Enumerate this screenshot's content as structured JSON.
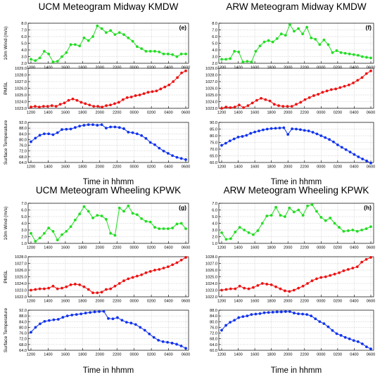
{
  "chart_data": [
    {
      "type": "line",
      "title": "UCM Meteogram Midway KMDW",
      "panel_label": "(e)",
      "xlabel": "Time in hhmm",
      "x_ticks": [
        "1200",
        "1400",
        "1600",
        "1800",
        "2000",
        "2200",
        "0000",
        "0200",
        "0400",
        "0600"
      ],
      "subplots": [
        {
          "ylabel": "10m Wind (m/s)",
          "color": "#22dd22",
          "ylim": [
            2,
            8
          ],
          "yticks": [
            "2.0",
            "3.0",
            "4.0",
            "5.0",
            "6.0",
            "7.0",
            "8.0"
          ],
          "values": [
            2.6,
            2.4,
            2.8,
            3.8,
            3.4,
            2.2,
            2.3,
            3.0,
            3.6,
            4.8,
            4.8,
            4.6,
            5.8,
            5.4,
            6.0,
            7.6,
            7.2,
            6.6,
            6.9,
            6.3,
            6.6,
            6.3,
            5.8,
            5.3,
            4.5,
            4.2,
            3.8,
            3.8,
            3.8,
            3.7,
            3.4,
            3.4,
            3.3,
            3.0,
            3.4,
            3.4
          ]
        },
        {
          "ylabel": "PMSL",
          "color": "#ee1111",
          "ylim": [
            1023,
            1029
          ],
          "yticks": [
            "1023.0",
            "1024.0",
            "1025.0",
            "1026.0",
            "1027.0",
            "1028.0",
            "1029.0"
          ],
          "values": [
            1023.2,
            1023.3,
            1023.2,
            1023.3,
            1023.3,
            1023.4,
            1023.3,
            1023.6,
            1023.8,
            1024.2,
            1024.4,
            1024.2,
            1023.9,
            1023.7,
            1023.5,
            1023.3,
            1023.3,
            1023.2,
            1023.4,
            1023.5,
            1023.7,
            1023.9,
            1024.3,
            1024.6,
            1024.7,
            1024.9,
            1025.0,
            1025.2,
            1025.4,
            1025.5,
            1025.6,
            1025.9,
            1026.2,
            1026.5,
            1027.0,
            1027.6,
            1028.3,
            1028.6
          ]
        },
        {
          "ylabel": "Surface Temperature",
          "color": "#1133ee",
          "ylim": [
            64,
            92
          ],
          "yticks": [
            "64.0",
            "68.0",
            "72.0",
            "76.0",
            "80.0",
            "84.0",
            "88.0",
            "92.0"
          ],
          "values": [
            78.5,
            81.0,
            83.0,
            84.0,
            84.0,
            83.4,
            84.8,
            87.0,
            87.2,
            87.4,
            88.4,
            89.4,
            90.0,
            90.4,
            90.4,
            90.0,
            90.4,
            88.0,
            88.8,
            88.8,
            88.4,
            87.6,
            85.2,
            84.8,
            84.0,
            82.8,
            80.8,
            78.0,
            76.4,
            74.0,
            72.0,
            70.4,
            68.8,
            67.6,
            66.8,
            66.0
          ]
        }
      ]
    },
    {
      "type": "line",
      "title": "ARW Meteogram Midway KMDW",
      "panel_label": "(f)",
      "xlabel": "Time in hhmm",
      "x_ticks": [
        "1200",
        "1400",
        "1600",
        "1800",
        "2000",
        "2200",
        "0000",
        "0200",
        "0400",
        "0600"
      ],
      "subplots": [
        {
          "ylabel": "",
          "color": "#22dd22",
          "ylim": [
            2,
            8
          ],
          "yticks": [
            "2.0",
            "3.0",
            "4.0",
            "5.0",
            "6.0",
            "7.0",
            "8.0"
          ],
          "values": [
            2.6,
            2.6,
            2.7,
            3.8,
            3.7,
            2.2,
            2.3,
            2.2,
            3.8,
            4.6,
            5.2,
            5.4,
            5.2,
            5.7,
            6.4,
            6.2,
            7.8,
            6.8,
            7.2,
            6.4,
            7.4,
            5.8,
            5.6,
            4.8,
            5.5,
            4.8,
            3.6,
            3.9,
            3.6,
            3.5,
            3.4,
            3.3,
            3.2,
            3.0,
            2.9,
            2.8
          ]
        },
        {
          "ylabel": "",
          "color": "#ee1111",
          "ylim": [
            1023,
            1029
          ],
          "yticks": [
            "1023.0",
            "1024.0",
            "1025.0",
            "1026.0",
            "1027.0",
            "1028.0",
            "1029.0"
          ],
          "values": [
            1023.0,
            1023.2,
            1023.1,
            1023.2,
            1023.5,
            1023.1,
            1023.4,
            1023.8,
            1024.2,
            1024.5,
            1024.3,
            1024.1,
            1023.6,
            1023.4,
            1023.3,
            1023.3,
            1023.3,
            1023.6,
            1023.9,
            1024.3,
            1024.6,
            1024.9,
            1025.1,
            1025.4,
            1025.6,
            1025.8,
            1025.9,
            1026.1,
            1026.3,
            1026.5,
            1026.8,
            1027.2,
            1027.6,
            1028.2,
            1028.6
          ]
        },
        {
          "ylabel": "",
          "color": "#1133ee",
          "ylim": [
            60,
            90
          ],
          "yticks": [
            "60.0",
            "65.0",
            "70.0",
            "75.0",
            "80.0",
            "85.0",
            "90.0"
          ],
          "values": [
            72.8,
            74.4,
            76.2,
            77.6,
            79.0,
            79.5,
            80.3,
            81.8,
            82.8,
            83.6,
            84.4,
            85.0,
            85.4,
            85.6,
            85.8,
            86.0,
            81.0,
            85.2,
            85.0,
            84.6,
            84.0,
            83.6,
            82.6,
            81.4,
            80.0,
            78.6,
            77.2,
            75.4,
            73.2,
            71.4,
            69.6,
            67.8,
            66.0,
            64.2,
            62.6,
            61.2,
            59.6
          ]
        }
      ]
    },
    {
      "type": "line",
      "title": "UCM Meteogram Wheeling KPWK",
      "panel_label": "(g)",
      "xlabel": "Time in hhmm",
      "x_ticks": [
        "1200",
        "1400",
        "1600",
        "1800",
        "2000",
        "2200",
        "0000",
        "0200",
        "0400",
        "0600"
      ],
      "subplots": [
        {
          "ylabel": "10m Wind (m/s)",
          "color": "#22dd22",
          "ylim": [
            1,
            7
          ],
          "yticks": [
            "1.0",
            "2.0",
            "3.0",
            "4.0",
            "5.0",
            "6.0",
            "7.0"
          ],
          "values": [
            2.5,
            1.3,
            1.8,
            2.5,
            3.3,
            2.8,
            1.5,
            2.3,
            2.8,
            3.5,
            4.5,
            5.4,
            6.5,
            5.8,
            4.8,
            5.2,
            5.1,
            4.6,
            2.5,
            2.2,
            6.3,
            5.8,
            6.6,
            5.5,
            5.3,
            4.7,
            4.3,
            4.2,
            3.4,
            3.2,
            3.2,
            3.2,
            3.3,
            3.9,
            4.0,
            3.2
          ]
        },
        {
          "ylabel": "PMSL",
          "color": "#ee1111",
          "ylim": [
            1022,
            1028
          ],
          "yticks": [
            "1022.0",
            "1023.0",
            "1024.0",
            "1025.0",
            "1026.0",
            "1027.0",
            "1028.0"
          ],
          "values": [
            1023.0,
            1023.1,
            1023.2,
            1023.2,
            1023.3,
            1023.6,
            1023.2,
            1023.3,
            1023.5,
            1023.8,
            1023.9,
            1023.8,
            1023.5,
            1023.1,
            1022.6,
            1022.6,
            1022.7,
            1023.1,
            1023.2,
            1023.6,
            1024.0,
            1024.4,
            1024.7,
            1024.9,
            1025.1,
            1025.3,
            1025.6,
            1025.8,
            1026.0,
            1026.1,
            1026.3,
            1026.5,
            1026.8,
            1027.1,
            1027.5,
            1027.9
          ]
        },
        {
          "ylabel": "Surface Temperature",
          "color": "#1133ee",
          "ylim": [
            64,
            92
          ],
          "yticks": [
            "64.0",
            "68.0",
            "72.0",
            "76.0",
            "80.0",
            "84.0",
            "88.0",
            "92.0"
          ],
          "values": [
            76.6,
            80.0,
            82.5,
            84.2,
            84.8,
            85.3,
            85.6,
            87.0,
            88.0,
            88.6,
            89.0,
            89.4,
            90.0,
            90.4,
            90.8,
            91.0,
            91.2,
            86.2,
            86.0,
            86.8,
            85.0,
            83.6,
            83.0,
            82.0,
            80.0,
            78.0,
            75.4,
            73.0,
            71.0,
            70.0,
            69.6,
            69.0,
            68.2,
            67.0,
            65.4
          ]
        }
      ]
    },
    {
      "type": "line",
      "title": "ARW Meteogram Wheeling KPWK",
      "panel_label": "(h)",
      "xlabel": "Time in hhmm",
      "x_ticks": [
        "1200",
        "1400",
        "1600",
        "1800",
        "2000",
        "2200",
        "0000",
        "0200",
        "0400",
        "0600"
      ],
      "subplots": [
        {
          "ylabel": "",
          "color": "#22dd22",
          "ylim": [
            1,
            7
          ],
          "yticks": [
            "1.0",
            "2.0",
            "3.0",
            "4.0",
            "5.0",
            "6.0",
            "7.0"
          ],
          "values": [
            2.6,
            1.6,
            1.7,
            2.7,
            3.4,
            3.0,
            2.6,
            2.3,
            2.9,
            4.0,
            5.1,
            5.2,
            6.4,
            5.2,
            5.0,
            6.3,
            5.7,
            6.0,
            5.2,
            6.6,
            6.8,
            5.8,
            4.9,
            4.4,
            4.8,
            4.0,
            3.4,
            2.8,
            2.9,
            3.0,
            2.8,
            3.0,
            3.2,
            3.5
          ]
        },
        {
          "ylabel": "",
          "color": "#ee1111",
          "ylim": [
            1022,
            1028
          ],
          "yticks": [
            "1022.0",
            "1023.0",
            "1024.0",
            "1025.0",
            "1026.0",
            "1027.0",
            "1028.0"
          ],
          "values": [
            1023.0,
            1023.1,
            1023.2,
            1023.2,
            1023.6,
            1023.3,
            1023.2,
            1023.4,
            1023.7,
            1024.0,
            1023.9,
            1023.8,
            1023.5,
            1023.2,
            1022.9,
            1022.8,
            1023.0,
            1023.3,
            1023.6,
            1024.0,
            1024.4,
            1024.7,
            1024.9,
            1025.0,
            1025.2,
            1025.4,
            1025.6,
            1025.9,
            1026.1,
            1026.3,
            1026.5,
            1027.2,
            1027.6,
            1027.9
          ]
        },
        {
          "ylabel": "",
          "color": "#1133ee",
          "ylim": [
            60,
            88
          ],
          "yticks": [
            "60.0",
            "64.0",
            "68.0",
            "72.0",
            "76.0",
            "80.0",
            "84.0",
            "88.0"
          ],
          "values": [
            74.0,
            77.4,
            79.6,
            81.0,
            82.8,
            83.5,
            84.0,
            85.0,
            85.3,
            85.6,
            86.2,
            86.4,
            86.6,
            86.8,
            86.8,
            87.0,
            87.0,
            86.0,
            85.5,
            85.3,
            85.0,
            84.0,
            82.0,
            80.0,
            78.6,
            76.4,
            73.8,
            71.6,
            70.4,
            69.0,
            68.0,
            66.8,
            66.0,
            64.5,
            62.4,
            61.0
          ]
        }
      ]
    }
  ]
}
